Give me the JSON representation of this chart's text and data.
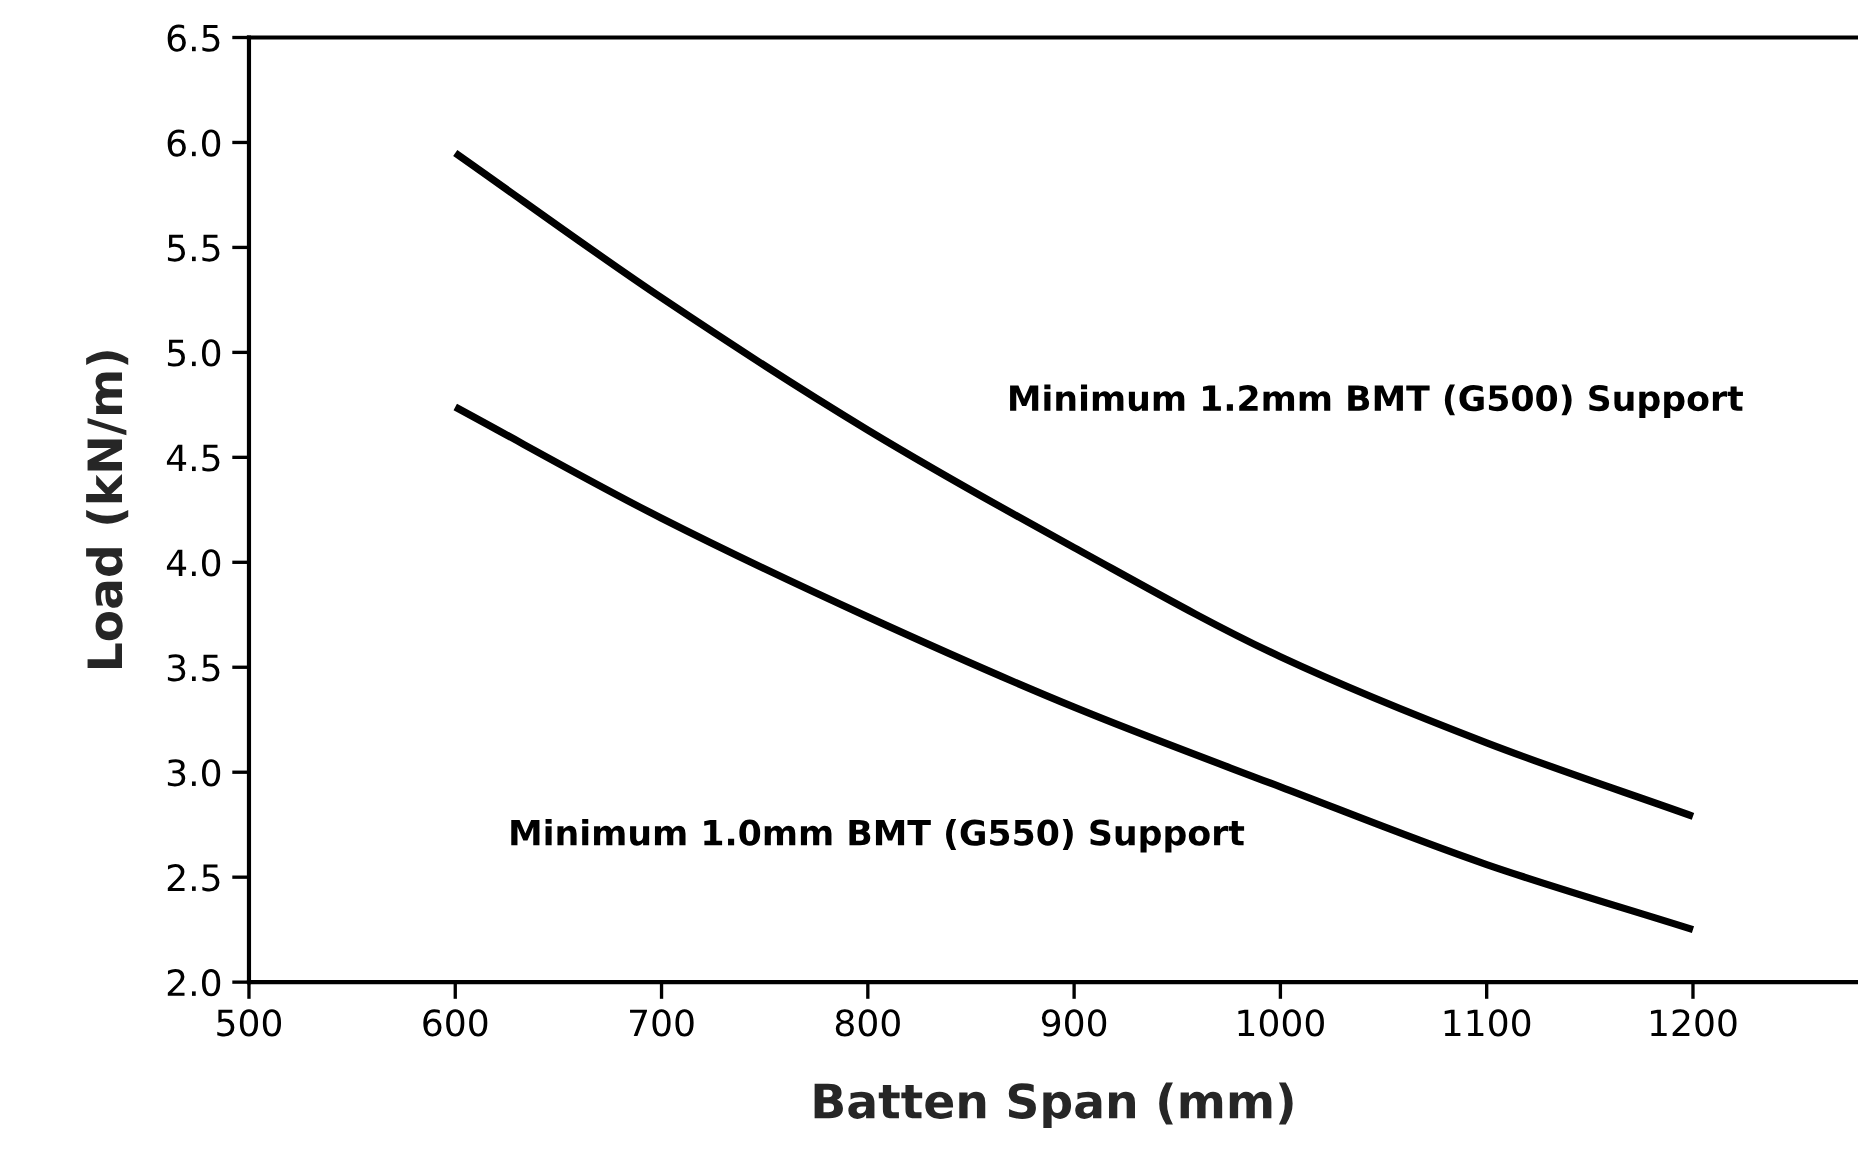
{
  "chart_data": {
    "type": "line",
    "xlabel": "Batten Span (mm)",
    "ylabel": "Load (kN/m)",
    "x": [
      600,
      700,
      800,
      900,
      1000,
      1100,
      1200
    ],
    "series": [
      {
        "name": "Minimum 1.2mm BMT (G500) Support",
        "color": "#000000",
        "values": [
          5.95,
          5.26,
          4.63,
          4.07,
          3.55,
          3.14,
          2.79
        ]
      },
      {
        "name": "Minimum 1.0mm BMT (G550) Support",
        "color": "#000000",
        "values": [
          4.74,
          4.21,
          3.74,
          3.31,
          2.93,
          2.56,
          2.25
        ]
      }
    ],
    "xlim": [
      500,
      1280
    ],
    "xticks": [
      500,
      600,
      700,
      800,
      900,
      1000,
      1100,
      1200
    ],
    "ylim": [
      2.0,
      6.5
    ],
    "yticks": [
      {
        "value": 2.0,
        "label": "2.0"
      },
      {
        "value": 2.5,
        "label": "2.5"
      },
      {
        "value": 3.0,
        "label": "3.0"
      },
      {
        "value": 3.5,
        "label": "3.5"
      },
      {
        "value": 4.0,
        "label": "4.0"
      },
      {
        "value": 4.5,
        "label": "4.5"
      },
      {
        "value": 5.0,
        "label": "5.0"
      },
      {
        "value": 5.5,
        "label": "5.5"
      },
      {
        "value": 6.0,
        "label": "6.0"
      },
      {
        "value": 6.5,
        "label": "6.5"
      }
    ],
    "grid": false,
    "marker": "none",
    "line_style": "solid",
    "legend": false
  }
}
